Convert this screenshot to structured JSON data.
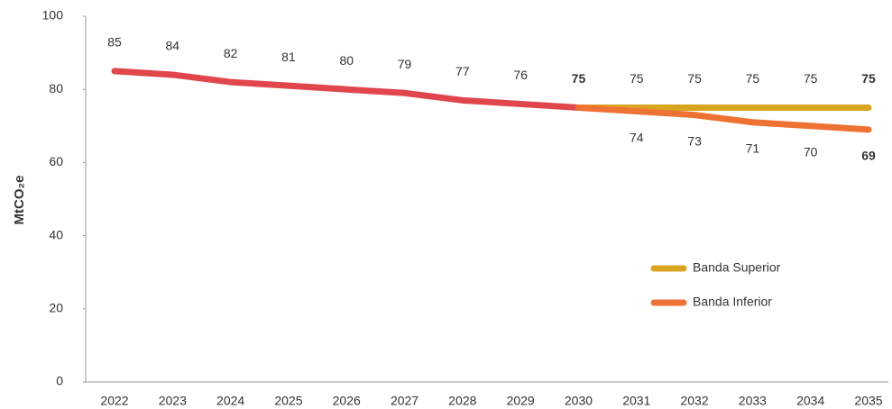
{
  "chart_data": {
    "type": "line",
    "y_label": "MtCO₂e",
    "categories": [
      "2022",
      "2023",
      "2024",
      "2025",
      "2026",
      "2027",
      "2028",
      "2029",
      "2030",
      "2031",
      "2032",
      "2033",
      "2034",
      "2035"
    ],
    "series": [
      {
        "color": "#e0464c",
        "values": [
          85,
          84,
          82,
          81,
          80,
          79,
          77,
          76,
          75,
          null,
          null,
          null,
          null,
          null
        ]
      },
      {
        "name": "Banda Superior",
        "color": "#d9a521",
        "values": [
          null,
          null,
          null,
          null,
          null,
          null,
          null,
          null,
          75,
          75,
          75,
          75,
          75,
          75
        ]
      },
      {
        "name": "Banda Inferior",
        "color": "#ee7233",
        "values": [
          null,
          null,
          null,
          null,
          null,
          null,
          null,
          null,
          75,
          74,
          73,
          71,
          70,
          69
        ]
      }
    ],
    "ylim": [
      0,
      100
    ],
    "yticks": [
      0,
      20,
      40,
      60,
      80,
      100
    ],
    "grid": false
  }
}
